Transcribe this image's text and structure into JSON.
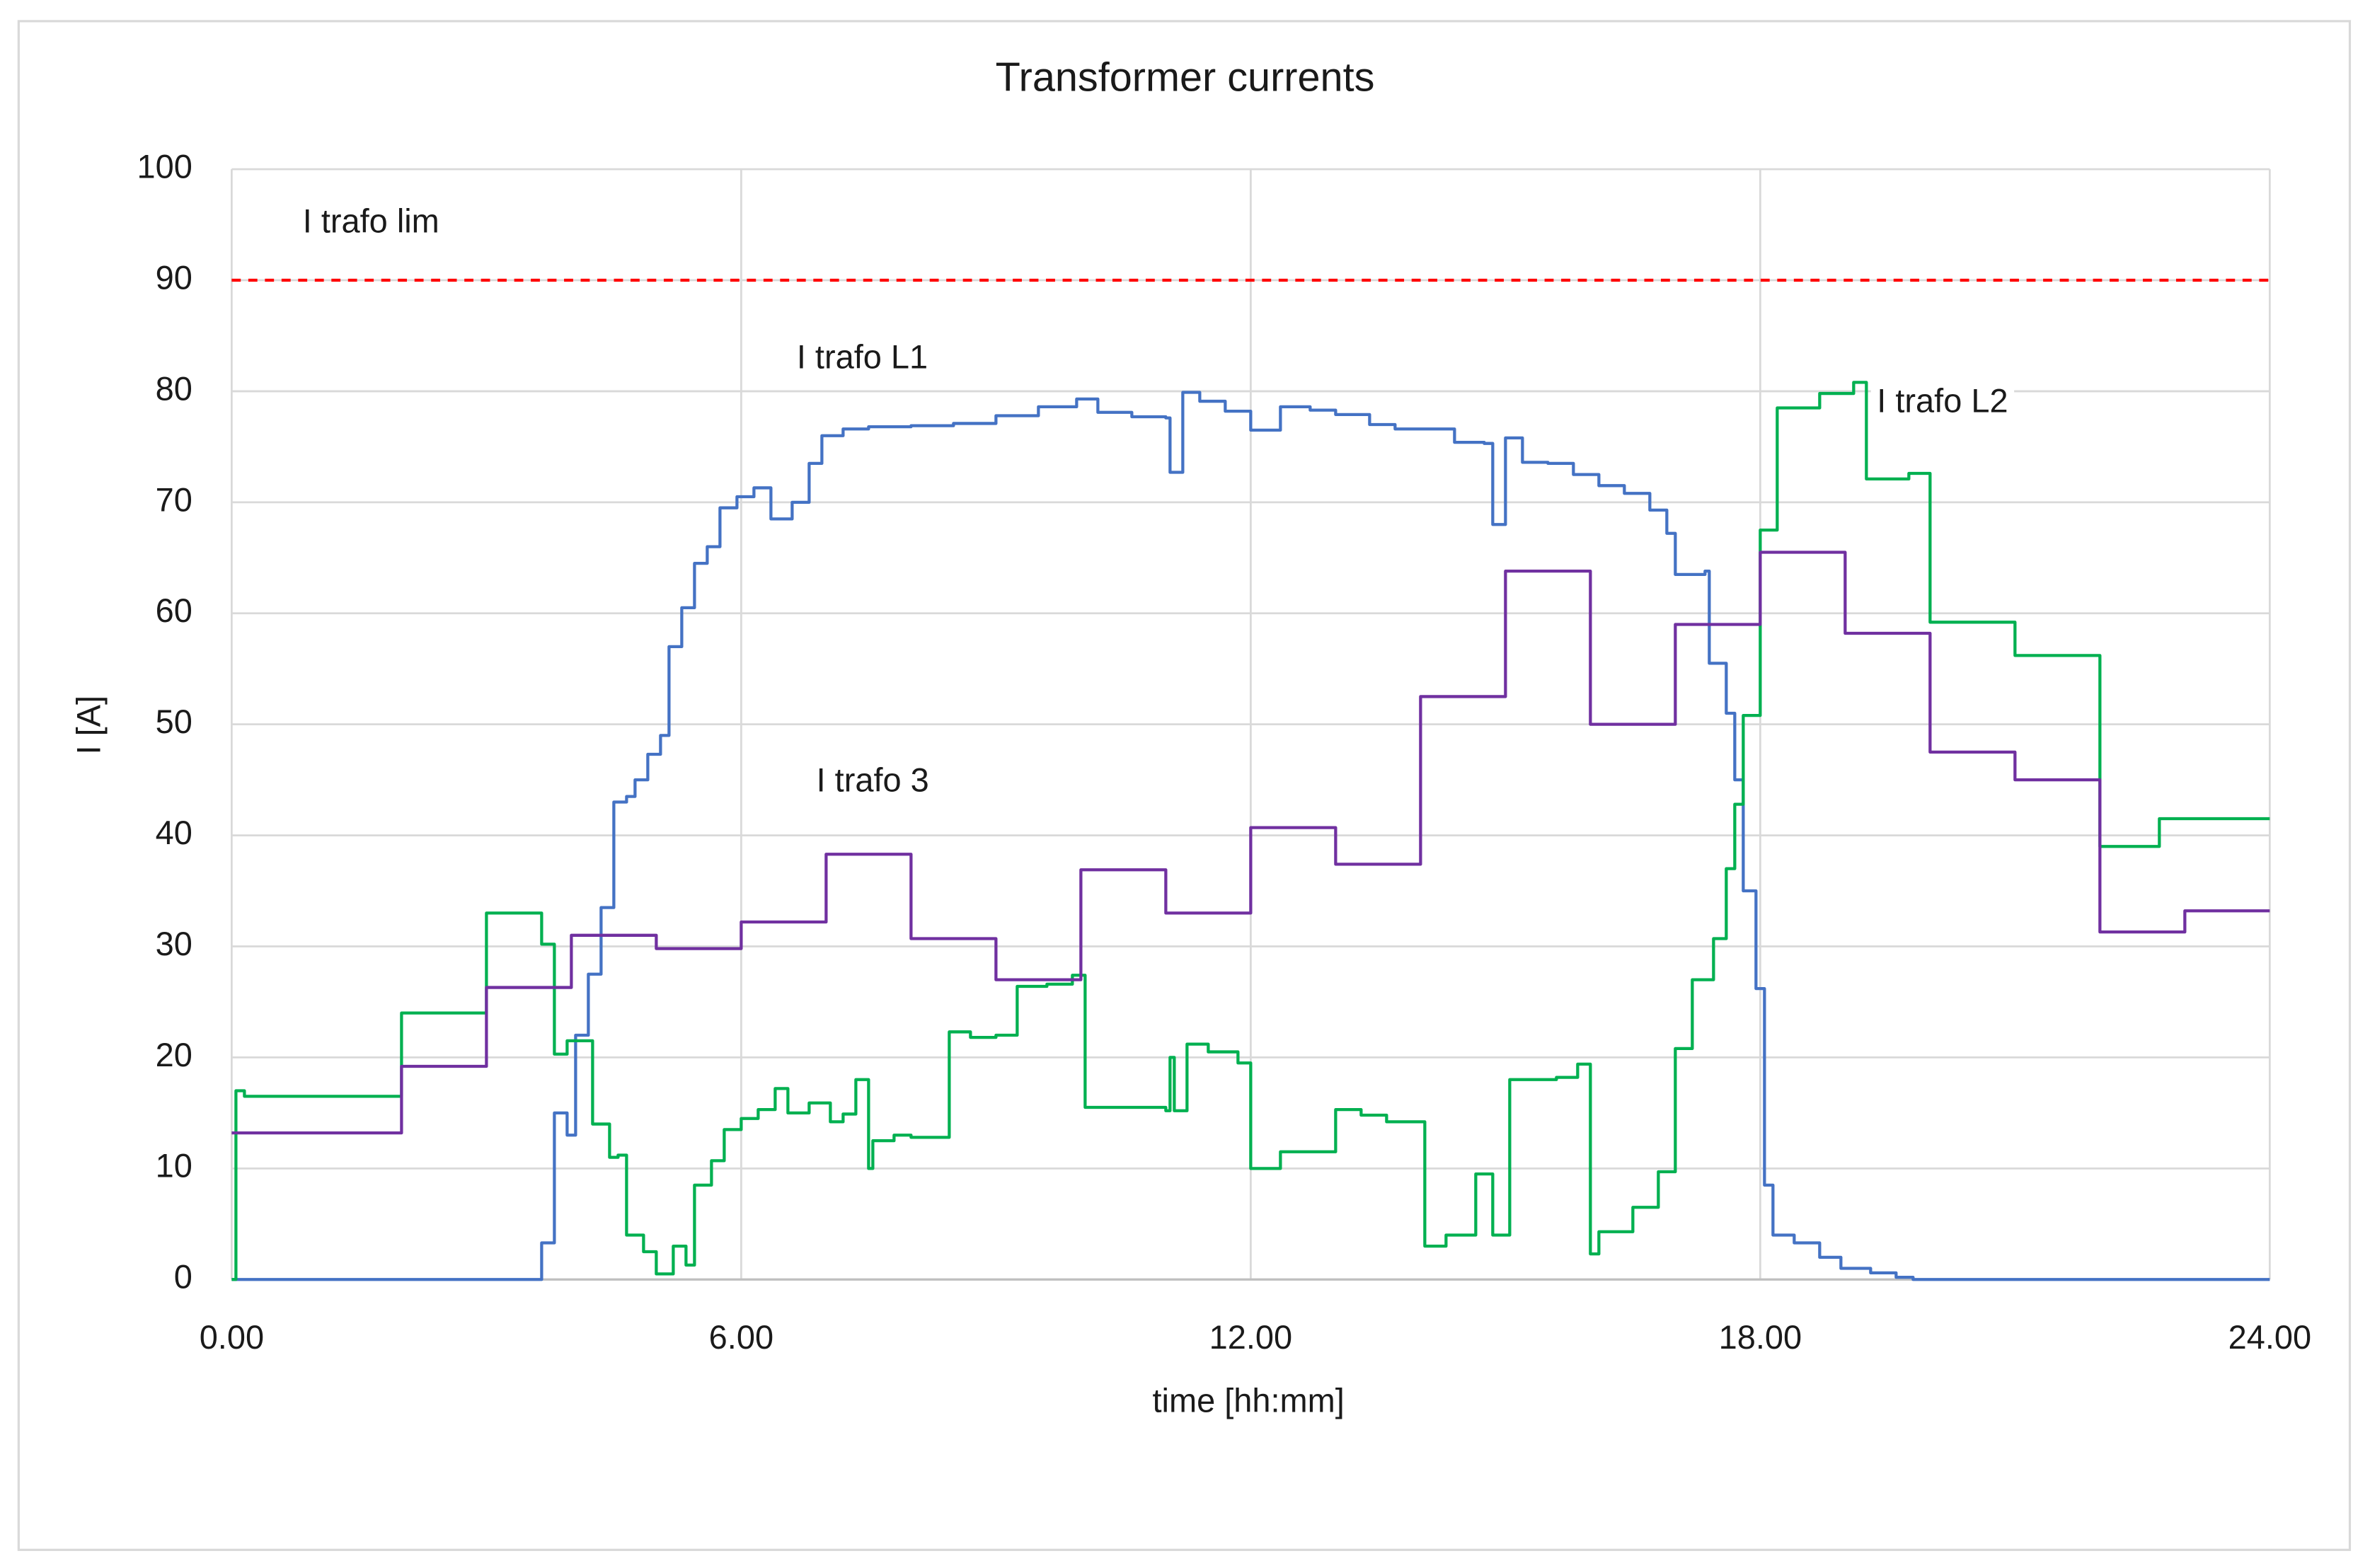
{
  "chart_data": {
    "type": "line",
    "title": "Transformer currents",
    "x_label": "time [hh:mm]",
    "y_label": "I [A]",
    "xlim": [
      0,
      24
    ],
    "xticks": [
      {
        "value": 0,
        "label": "0.00"
      },
      {
        "value": 6,
        "label": "6.00"
      },
      {
        "value": 12,
        "label": "12.00"
      },
      {
        "value": 18,
        "label": "18.00"
      },
      {
        "value": 24,
        "label": "24.00"
      }
    ],
    "ylim": [
      0,
      100
    ],
    "yticks": [
      0,
      10,
      20,
      30,
      40,
      50,
      60,
      70,
      80,
      90,
      100
    ],
    "grid": true,
    "drawstyle": "steps-post",
    "series": [
      {
        "name": "I trafo lim",
        "color": "#ff0000",
        "linestyle": "dashed",
        "x": [
          0,
          24
        ],
        "values": [
          90,
          90
        ]
      },
      {
        "name": "I trafo L1",
        "color": "#4472c4",
        "linestyle": "solid",
        "x": [
          0,
          3.6,
          3.65,
          3.8,
          3.95,
          4.05,
          4.2,
          4.35,
          4.5,
          4.65,
          4.75,
          4.9,
          5.05,
          5.15,
          5.3,
          5.45,
          5.6,
          5.75,
          5.95,
          6.15,
          6.35,
          6.6,
          6.8,
          6.95,
          7.2,
          7.5,
          8.0,
          8.5,
          9.0,
          9.5,
          9.95,
          10.2,
          10.6,
          11.0,
          11.05,
          11.2,
          11.4,
          11.7,
          12.0,
          12.35,
          12.7,
          13.0,
          13.4,
          13.7,
          14.1,
          14.4,
          14.75,
          14.85,
          15.0,
          15.2,
          15.5,
          15.8,
          16.1,
          16.4,
          16.7,
          16.9,
          17.0,
          17.35,
          17.4,
          17.6,
          17.7,
          17.8,
          17.85,
          17.95,
          18.05,
          18.15,
          18.4,
          18.7,
          18.95,
          19.3,
          19.6,
          19.8,
          24
        ],
        "values": [
          0,
          0,
          3.3,
          15,
          13,
          22,
          27.5,
          33.5,
          43,
          43.5,
          45,
          47.3,
          49,
          57,
          60.5,
          64.5,
          66,
          69.5,
          70.5,
          71.3,
          68.5,
          70,
          73.5,
          76,
          76.6,
          76.8,
          76.9,
          77.1,
          77.8,
          78.6,
          79.3,
          78.1,
          77.7,
          77.6,
          72.7,
          79.9,
          79.1,
          78.2,
          76.5,
          78.6,
          78.3,
          77.9,
          77,
          76.6,
          76.6,
          75.4,
          75.3,
          68,
          75.8,
          73.6,
          73.5,
          72.5,
          71.5,
          70.8,
          69.3,
          67.2,
          63.5,
          63.8,
          55.5,
          51,
          45,
          35,
          35,
          26.2,
          8.5,
          4,
          3.3,
          2,
          1,
          0.6,
          0.2,
          0,
          0
        ]
      },
      {
        "name": "I trafo L2",
        "color": "#00b050",
        "linestyle": "solid",
        "x": [
          0,
          0.05,
          0.15,
          2,
          3,
          3.65,
          3.8,
          3.95,
          4.25,
          4.45,
          4.55,
          4.65,
          4.85,
          5.0,
          5.2,
          5.35,
          5.45,
          5.65,
          5.8,
          6.0,
          6.2,
          6.4,
          6.55,
          6.8,
          7.05,
          7.2,
          7.35,
          7.5,
          7.55,
          7.8,
          8.0,
          8.45,
          8.7,
          9.0,
          9.25,
          9.6,
          9.9,
          10.05,
          10.3,
          11.0,
          11.05,
          11.1,
          11.25,
          11.5,
          11.85,
          12.0,
          12.35,
          13.0,
          13.3,
          13.6,
          14.05,
          14.3,
          14.65,
          14.85,
          15.05,
          15.6,
          15.85,
          16.0,
          16.1,
          16.5,
          16.8,
          17.0,
          17.2,
          17.45,
          17.6,
          17.7,
          17.8,
          18.0,
          18.2,
          18.7,
          19.1,
          19.25,
          19.75,
          20.0,
          21.0,
          22.0,
          22.7,
          24
        ],
        "values": [
          0,
          17,
          16.5,
          24,
          33,
          30.2,
          20.3,
          21.5,
          14,
          11,
          11.2,
          4,
          2.5,
          0.5,
          3,
          1.3,
          8.5,
          10.7,
          13.5,
          14.5,
          15.3,
          17.2,
          15,
          15.9,
          14.2,
          14.9,
          18,
          10,
          12.5,
          13,
          12.8,
          22.3,
          21.8,
          22,
          26.4,
          26.6,
          27.4,
          15.5,
          15.5,
          15.2,
          20,
          15.2,
          21.2,
          20.5,
          19.5,
          10,
          11.5,
          15.3,
          14.8,
          14.2,
          3,
          4,
          9.5,
          4,
          18,
          18.2,
          19.4,
          2.3,
          4.3,
          6.5,
          9.7,
          20.8,
          27,
          30.7,
          37,
          42.8,
          50.8,
          67.5,
          78.5,
          79.8,
          80.8,
          72.1,
          72.6,
          59.2,
          56.2,
          39,
          41.5,
          41.5
        ]
      },
      {
        "name": "I trafo 3",
        "color": "#7030a0",
        "linestyle": "solid",
        "x": [
          0,
          2,
          3,
          4,
          5,
          6,
          7,
          8,
          9,
          10,
          11,
          12,
          13,
          14,
          15,
          16,
          17,
          18,
          19,
          20,
          21,
          22,
          23,
          24
        ],
        "values": [
          13.2,
          19.2,
          26.3,
          31,
          29.8,
          32.2,
          38.3,
          30.7,
          27,
          36.9,
          33,
          40.7,
          37.4,
          52.5,
          63.8,
          50,
          59,
          65.5,
          58.2,
          47.5,
          45,
          31.3,
          33.2,
          33.2
        ]
      }
    ]
  }
}
